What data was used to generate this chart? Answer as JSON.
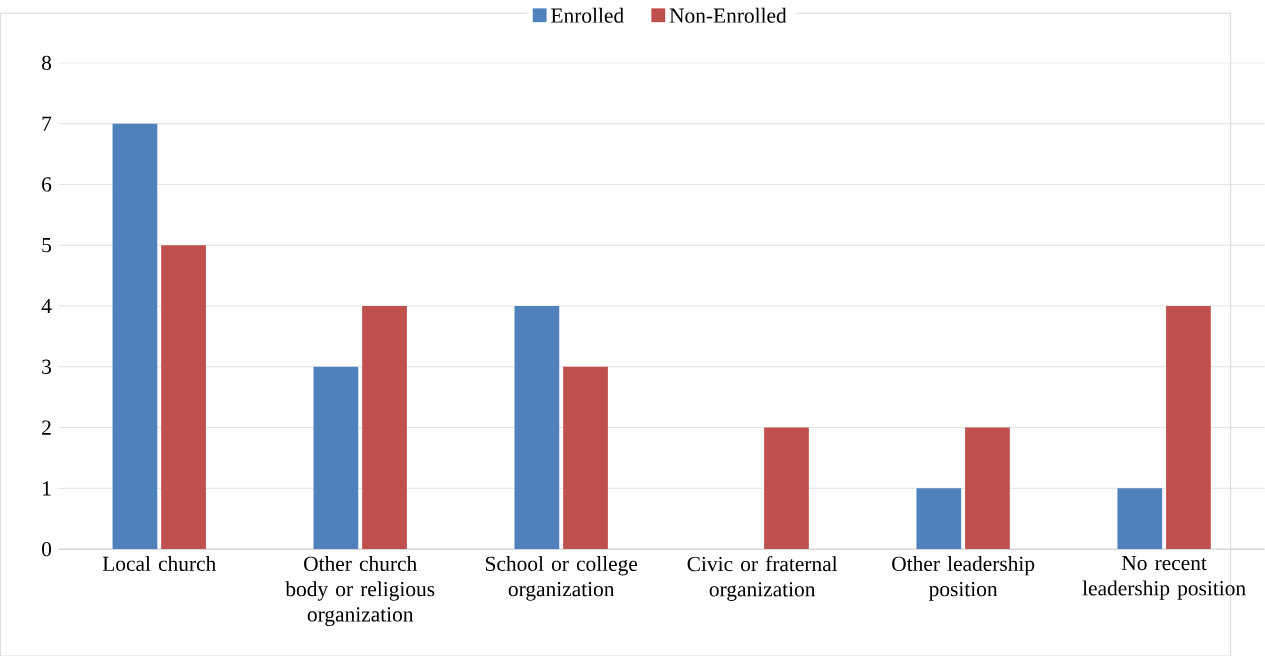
{
  "chart_data": {
    "type": "bar",
    "categories": [
      "Local church",
      "Other church body or religious organization",
      "School or college organization",
      "Civic or fraternal organization",
      "Other leadership position",
      "No recent leadership position"
    ],
    "series": [
      {
        "name": "Enrolled",
        "color": "#4f81bd",
        "values": [
          7,
          3,
          4,
          0,
          1,
          1
        ]
      },
      {
        "name": "Non-Enrolled",
        "color": "#c0504d",
        "values": [
          5,
          4,
          3,
          2,
          2,
          4
        ]
      }
    ],
    "ylim": [
      0,
      8
    ],
    "yticks": [
      0,
      1,
      2,
      3,
      4,
      5,
      6,
      7,
      8
    ],
    "grid": "y",
    "legend": "top"
  }
}
